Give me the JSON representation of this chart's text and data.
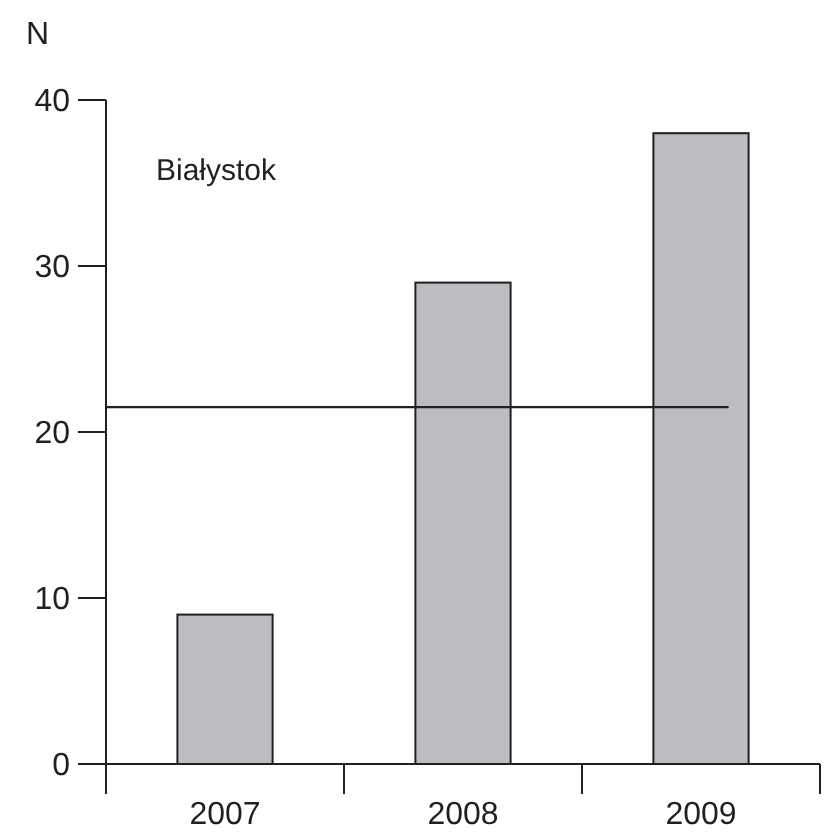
{
  "chart_data": {
    "type": "bar",
    "ylabel": "N",
    "categories": [
      "2007",
      "2008",
      "2009"
    ],
    "values": [
      9,
      29,
      38
    ],
    "color": "#bcbdc0",
    "ylim": [
      0,
      40
    ],
    "yticks": [
      0,
      10,
      20,
      30,
      40
    ],
    "ref_lines": [
      {
        "axis": "y",
        "value": 21.5,
        "color": "#231f20"
      }
    ],
    "annotations": [
      "Białystok"
    ],
    "grid": false
  }
}
